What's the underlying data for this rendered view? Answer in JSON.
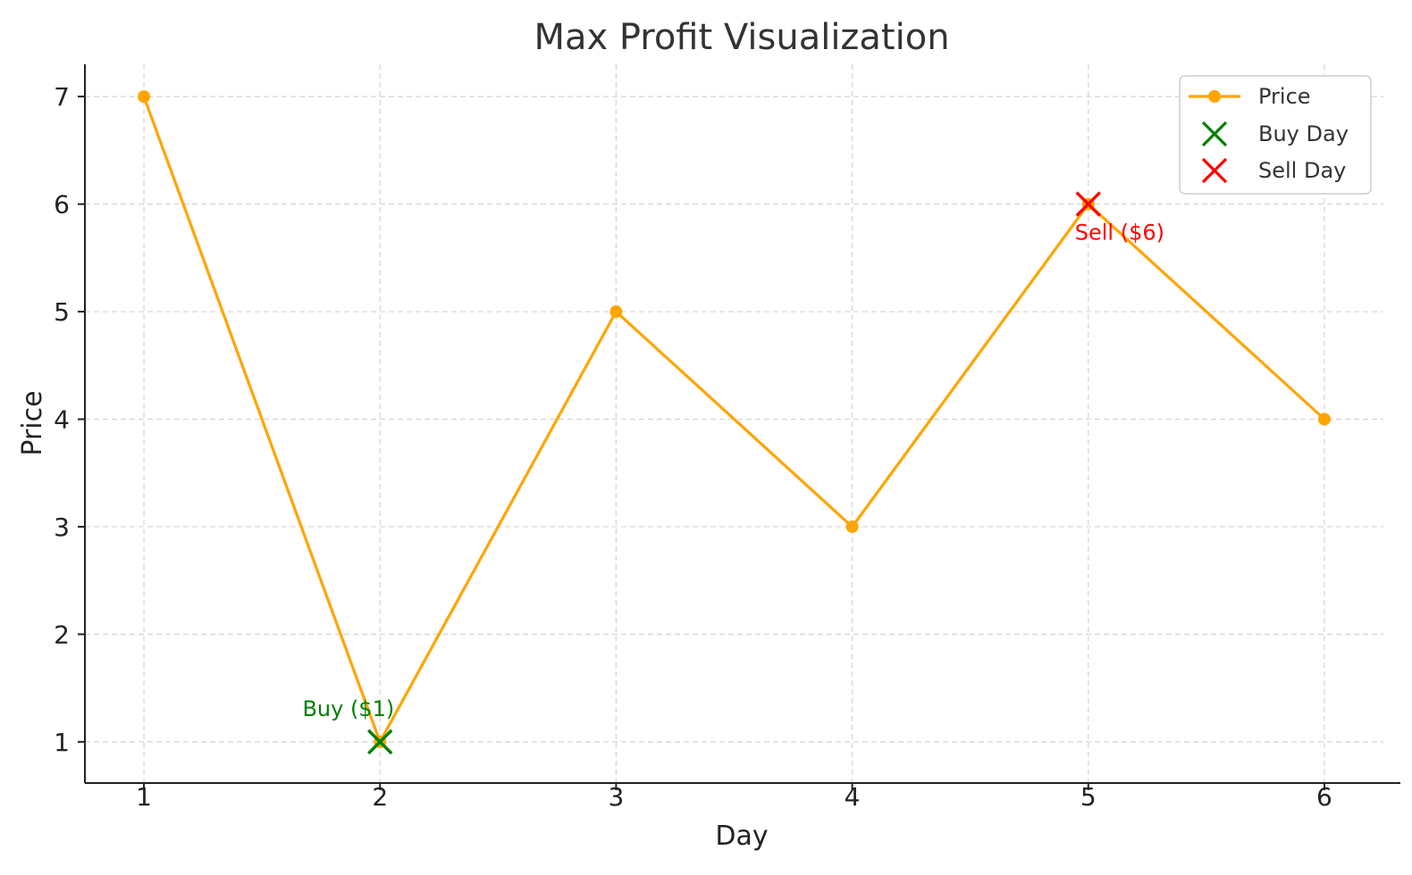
{
  "chart_data": {
    "type": "line",
    "title": "Max Profit Visualization",
    "xlabel": "Day",
    "ylabel": "Price",
    "x": [
      1,
      2,
      3,
      4,
      5,
      6
    ],
    "xlim": [
      0.75,
      6.25
    ],
    "ylim": [
      0.7,
      7.3
    ],
    "xticks": [
      1,
      2,
      3,
      4,
      5,
      6
    ],
    "yticks": [
      1,
      2,
      3,
      4,
      5,
      6,
      7
    ],
    "grid": true,
    "legend_position": "top-right",
    "series": [
      {
        "name": "Price",
        "values": [
          7,
          1,
          5,
          3,
          6,
          4
        ],
        "color": "#FFA500",
        "marker": "circle"
      }
    ],
    "markers": [
      {
        "name": "Buy Day",
        "x": 2,
        "y": 1,
        "color": "#008000",
        "marker": "x"
      },
      {
        "name": "Sell Day",
        "x": 5,
        "y": 6,
        "color": "#FF0000",
        "marker": "x"
      }
    ],
    "annotations": [
      {
        "text": "Buy ($1)",
        "x": 2,
        "y": 1,
        "color": "#008000",
        "placement": "above-left"
      },
      {
        "text": "Sell ($6)",
        "x": 5,
        "y": 6,
        "color": "#FF0000",
        "placement": "below"
      }
    ],
    "legend": [
      "Price",
      "Buy Day",
      "Sell Day"
    ]
  }
}
